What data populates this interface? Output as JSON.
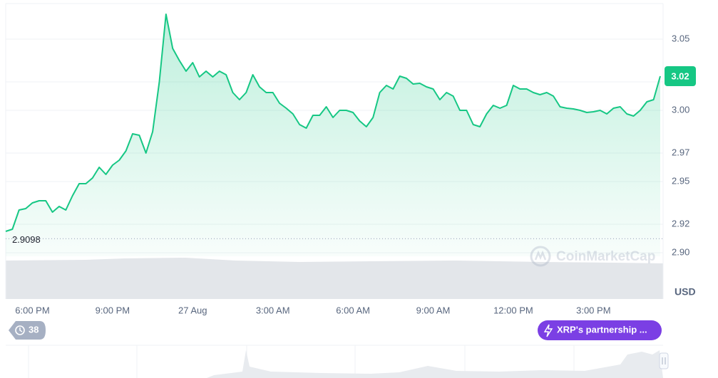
{
  "chart_data": {
    "type": "line",
    "categories": [
      null,
      null,
      null,
      null,
      "6:00 PM",
      null,
      null,
      null,
      null,
      null,
      null,
      null,
      null,
      null,
      null,
      null,
      "9:00 PM",
      null,
      null,
      null,
      null,
      null,
      null,
      null,
      null,
      null,
      null,
      null,
      "27 Aug",
      null,
      null,
      null,
      null,
      null,
      null,
      null,
      null,
      null,
      null,
      null,
      "3:00 AM",
      null,
      null,
      null,
      null,
      null,
      null,
      null,
      null,
      null,
      null,
      null,
      "6:00 AM",
      null,
      null,
      null,
      null,
      null,
      null,
      null,
      null,
      null,
      null,
      null,
      "9:00 AM",
      null,
      null,
      null,
      null,
      null,
      null,
      null,
      null,
      null,
      null,
      null,
      "12:00 PM",
      null,
      null,
      null,
      null,
      null,
      null,
      null,
      null,
      null,
      null,
      null,
      "3:00 PM",
      null,
      null,
      null,
      null,
      null,
      null,
      null,
      null,
      null,
      null
    ],
    "values": [
      2.915,
      2.9165,
      2.93,
      2.931,
      2.935,
      2.9365,
      2.9365,
      2.9285,
      2.9325,
      2.93,
      2.94,
      2.9485,
      2.9485,
      2.9525,
      2.96,
      2.955,
      2.9615,
      2.965,
      2.9715,
      2.9835,
      2.9825,
      2.97,
      2.985,
      3.02,
      3.0675,
      3.0435,
      3.035,
      3.0275,
      3.0335,
      3.0235,
      3.0275,
      3.0235,
      3.0275,
      3.025,
      3.0125,
      3.0075,
      3.0125,
      3.025,
      3.0165,
      3.0125,
      3.0125,
      3.005,
      3.0015,
      2.9975,
      2.99,
      2.9875,
      2.9965,
      2.9965,
      3.0025,
      2.995,
      3.0,
      3.0,
      2.9985,
      2.9925,
      2.9885,
      2.995,
      3.0125,
      3.0175,
      3.015,
      3.024,
      3.0225,
      3.0185,
      3.019,
      3.0165,
      3.015,
      3.0075,
      3.0125,
      3.01,
      3.0,
      3.0,
      2.99,
      2.9885,
      2.9975,
      3.0035,
      3.0015,
      3.0035,
      3.0175,
      3.015,
      3.015,
      3.0125,
      3.011,
      3.0125,
      3.01,
      3.0025,
      3.0015,
      3.001,
      3.0,
      2.9985,
      2.999,
      3.0,
      2.9975,
      3.0015,
      3.0025,
      2.9975,
      2.996,
      3.0,
      3.006,
      3.0075,
      3.024
    ],
    "color": "#16c784",
    "ylim": [
      2.9,
      3.075
    ],
    "yticks": [
      {
        "value": 2.9,
        "label": "2.90"
      },
      2.92,
      2.95,
      2.97,
      {
        "value": 3,
        "label": "3.00"
      },
      3.02,
      3.05
    ],
    "grid": true,
    "y_axis_side": "right",
    "unit": "USD",
    "reference_value": 2.9098,
    "last_price_label": 3.02,
    "watermark": "CoinMarketCap",
    "event_count": 38,
    "event_label": "XRP's partnership ..."
  }
}
